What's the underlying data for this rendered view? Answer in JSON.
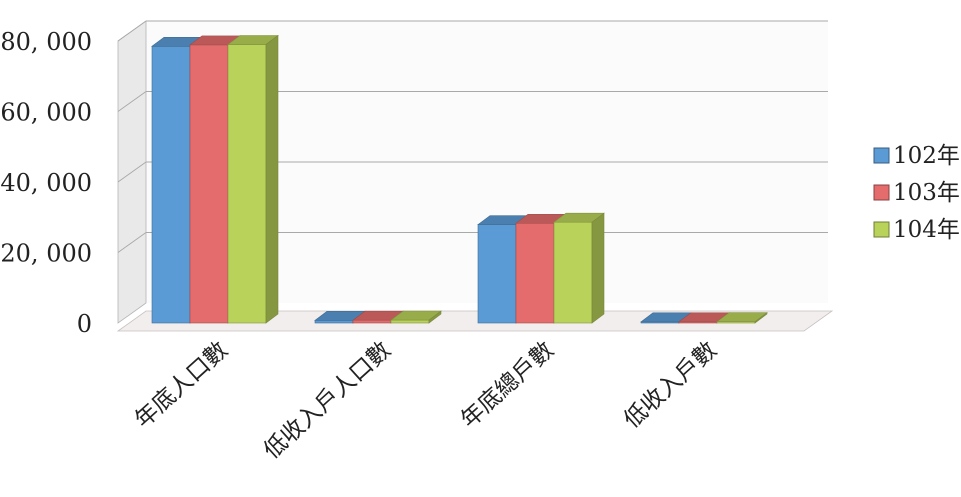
{
  "chart_data": {
    "type": "bar",
    "style": "3d-clustered-column",
    "categories": [
      "年底人口數",
      "低收入戶人口數",
      "年底總戶數",
      "低收入戶數"
    ],
    "series": [
      {
        "name": "102年",
        "values": [
          78500,
          750,
          27900,
          330
        ],
        "color": "#5b9bd5"
      },
      {
        "name": "103年",
        "values": [
          78900,
          790,
          28300,
          350
        ],
        "color": "#e46c6c"
      },
      {
        "name": "104年",
        "values": [
          79000,
          820,
          28600,
          370
        ],
        "color": "#b9d25a"
      }
    ],
    "ylim": [
      0,
      80000
    ],
    "y_ticks": [
      "0",
      "20, 000",
      "40, 000",
      "60, 000",
      "80, 000"
    ],
    "y_tick_values": [
      0,
      20000,
      40000,
      60000,
      80000
    ],
    "grid": true,
    "legend_position": "right",
    "xtick_rotation": "diagonal"
  }
}
